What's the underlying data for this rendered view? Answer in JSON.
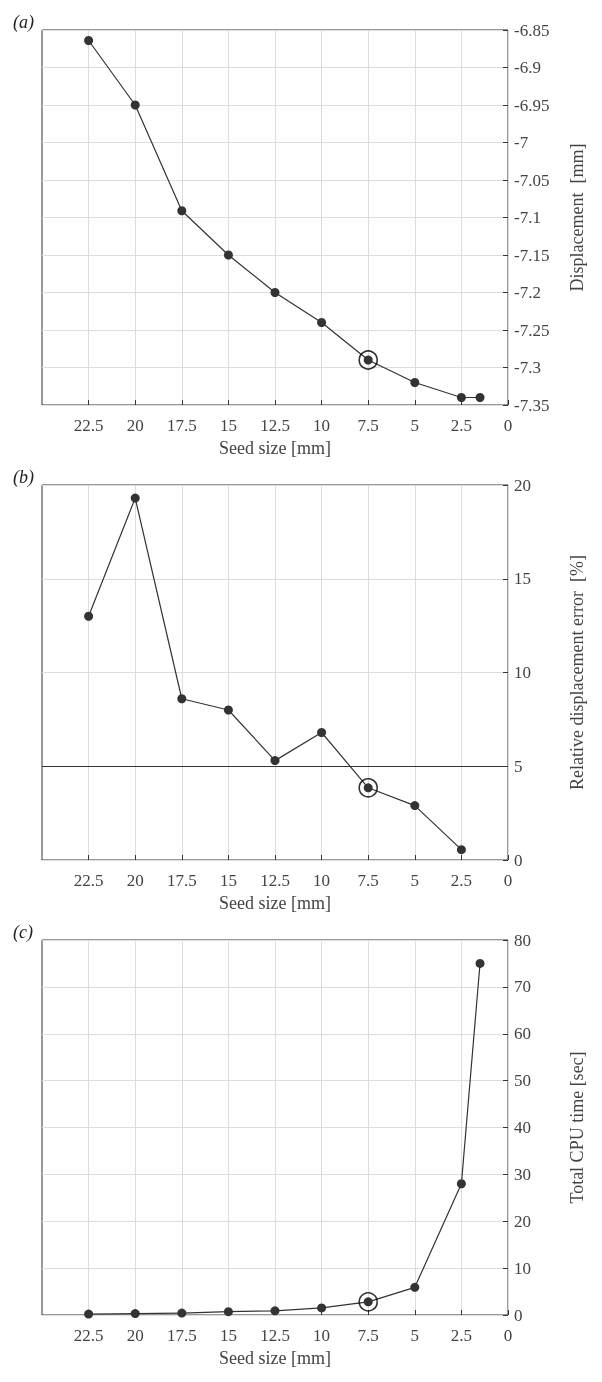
{
  "chart_data": [
    {
      "type": "line",
      "title": "(a)",
      "xlabel": "Seed size [mm]",
      "ylabel": "Displacement  [mm]",
      "xlim": [
        25,
        0
      ],
      "xticks": [
        22.5,
        20,
        17.5,
        15,
        12.5,
        10,
        7.5,
        5,
        2.5,
        0
      ],
      "ylim": [
        -7.35,
        -6.85
      ],
      "yticks": [
        -7.35,
        -7.3,
        -7.25,
        -7.2,
        -7.15,
        -7.1,
        -7.05,
        -7,
        -6.95,
        -6.9,
        -6.85
      ],
      "grid": true,
      "line_style": "solid",
      "series": [
        {
          "marker": "circle",
          "color": "#333333",
          "x": [
            22.5,
            20,
            17.5,
            15,
            12.5,
            10,
            7.5,
            5,
            2.5,
            1.5
          ],
          "values": [
            -6.864,
            -6.95,
            -7.091,
            -7.15,
            -7.2,
            -7.24,
            -7.29,
            -7.32,
            -7.34,
            -7.34
          ]
        },
        {
          "type": "scatter",
          "marker": "circle",
          "color": "#000000",
          "x": [
            7.5
          ],
          "values": [
            -7.29
          ]
        }
      ]
    },
    {
      "type": "line",
      "title": "(b)",
      "xlabel": "Seed size [mm]",
      "ylabel": "Relative displacement error  [%]",
      "xlim": [
        25,
        0
      ],
      "xticks": [
        22.5,
        20,
        17.5,
        15,
        12.5,
        10,
        7.5,
        5,
        2.5,
        0
      ],
      "ylim": [
        0,
        20
      ],
      "yticks": [
        0,
        5,
        10,
        15,
        20
      ],
      "grid": true,
      "line_style": "solid",
      "ref_lines": [
        {
          "axis": "y",
          "value": 5,
          "color": "#333333"
        }
      ],
      "series": [
        {
          "marker": "circle",
          "color": "#333333",
          "x": [
            22.5,
            20,
            17.5,
            15,
            12.5,
            10,
            7.5,
            5,
            2.5
          ],
          "values": [
            13.0,
            19.3,
            8.6,
            8.0,
            5.3,
            6.8,
            3.85,
            2.9,
            0.55
          ]
        },
        {
          "type": "scatter",
          "marker": "circle",
          "color": "#000000",
          "x": [
            7.5
          ],
          "values": [
            3.85
          ]
        }
      ]
    },
    {
      "type": "line",
      "title": "(c)",
      "xlabel": "Seed size [mm]",
      "ylabel": "Total CPU time [sec]",
      "xlim": [
        25,
        0
      ],
      "xticks": [
        22.5,
        20,
        17.5,
        15,
        12.5,
        10,
        7.5,
        5,
        2.5,
        0
      ],
      "ylim": [
        0,
        80
      ],
      "yticks": [
        0,
        10,
        20,
        30,
        40,
        50,
        60,
        70,
        80
      ],
      "grid": true,
      "line_style": "solid",
      "series": [
        {
          "marker": "circle",
          "color": "#333333",
          "x": [
            22.5,
            20,
            17.5,
            15,
            12.5,
            10,
            7.5,
            5,
            2.5,
            1.5
          ],
          "values": [
            0.2,
            0.3,
            0.4,
            0.7,
            0.9,
            1.5,
            2.8,
            5.9,
            28,
            75
          ]
        },
        {
          "type": "scatter",
          "marker": "circle",
          "color": "#000000",
          "x": [
            7.5
          ],
          "values": [
            2.8
          ]
        }
      ]
    }
  ]
}
